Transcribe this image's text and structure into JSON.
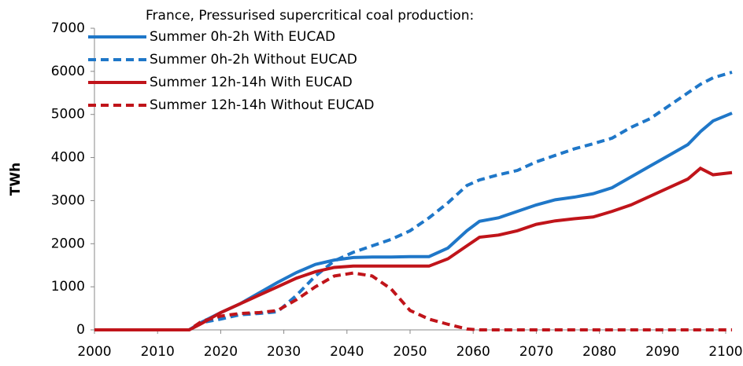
{
  "chart_data": {
    "type": "line",
    "title": "France, Pressurised supercritical coal production:",
    "y_label": "TWh",
    "x": [
      2000,
      2005,
      2010,
      2015,
      2017,
      2020,
      2023,
      2026,
      2029,
      2032,
      2035,
      2038,
      2041,
      2044,
      2047,
      2050,
      2053,
      2056,
      2059,
      2061,
      2064,
      2067,
      2070,
      2073,
      2076,
      2079,
      2082,
      2085,
      2088,
      2091,
      2094,
      2096,
      2098,
      2101
    ],
    "series": [
      {
        "name": "Summer 0h-2h With EUCAD",
        "color": "#1f77c8",
        "dashed": false,
        "values": [
          0,
          0,
          0,
          0,
          180,
          400,
          600,
          850,
          1100,
          1330,
          1520,
          1620,
          1680,
          1690,
          1690,
          1700,
          1700,
          1900,
          2300,
          2520,
          2600,
          2750,
          2900,
          3020,
          3080,
          3160,
          3300,
          3550,
          3800,
          4050,
          4300,
          4600,
          4850,
          5030
        ]
      },
      {
        "name": "Summer 0h-2h Without EUCAD",
        "color": "#1f77c8",
        "dashed": true,
        "values": [
          0,
          0,
          0,
          0,
          170,
          250,
          350,
          380,
          420,
          800,
          1250,
          1600,
          1800,
          1950,
          2100,
          2300,
          2600,
          2950,
          3350,
          3480,
          3600,
          3700,
          3900,
          4050,
          4200,
          4320,
          4450,
          4700,
          4900,
          5200,
          5500,
          5700,
          5850,
          5980
        ]
      },
      {
        "name": "Summer 12h-14h With EUCAD",
        "color": "#c0141a",
        "dashed": false,
        "values": [
          0,
          0,
          0,
          0,
          150,
          400,
          600,
          800,
          1000,
          1200,
          1350,
          1450,
          1480,
          1480,
          1480,
          1480,
          1480,
          1650,
          1950,
          2150,
          2200,
          2300,
          2450,
          2530,
          2580,
          2620,
          2750,
          2900,
          3100,
          3300,
          3500,
          3750,
          3600,
          3650
        ]
      },
      {
        "name": "Summer 12h-14h Without EUCAD",
        "color": "#c0141a",
        "dashed": true,
        "values": [
          0,
          0,
          0,
          0,
          200,
          320,
          380,
          400,
          450,
          700,
          1000,
          1250,
          1320,
          1250,
          950,
          450,
          250,
          130,
          20,
          0,
          0,
          0,
          0,
          0,
          0,
          0,
          0,
          0,
          0,
          0,
          0,
          0,
          0,
          0
        ]
      }
    ],
    "xlim": [
      2000,
      2100
    ],
    "xticks": [
      2000,
      2010,
      2020,
      2030,
      2040,
      2050,
      2060,
      2070,
      2080,
      2090,
      2100
    ],
    "ylim": [
      0,
      7000
    ],
    "yticks": [
      0,
      1000,
      2000,
      3000,
      4000,
      5000,
      6000,
      7000
    ],
    "grid": false,
    "legend": "upper left"
  }
}
